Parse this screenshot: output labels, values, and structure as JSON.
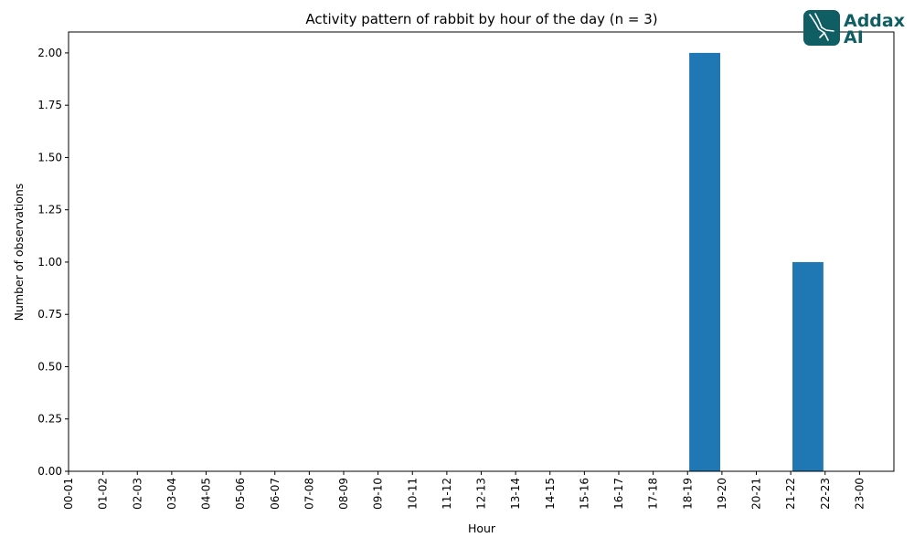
{
  "chart_data": {
    "type": "bar",
    "title": "Activity pattern of rabbit by hour of the day (n = 3)",
    "xlabel": "Hour",
    "ylabel": "Number of observations",
    "categories": [
      "00-01",
      "01-02",
      "02-03",
      "03-04",
      "04-05",
      "05-06",
      "06-07",
      "07-08",
      "08-09",
      "09-10",
      "10-11",
      "11-12",
      "12-13",
      "13-14",
      "14-15",
      "15-16",
      "16-17",
      "17-18",
      "18-19",
      "19-20",
      "20-21",
      "21-22",
      "22-23",
      "23-00"
    ],
    "values": [
      0,
      0,
      0,
      0,
      0,
      0,
      0,
      0,
      0,
      0,
      0,
      0,
      0,
      0,
      0,
      0,
      0,
      0,
      2,
      0,
      0,
      1,
      0,
      0
    ],
    "ylim": [
      0,
      2.1
    ],
    "yticks": [
      "0.00",
      "0.25",
      "0.50",
      "0.75",
      "1.00",
      "1.25",
      "1.50",
      "1.75",
      "2.00"
    ],
    "bar_color": "#1f77b4",
    "grid": false,
    "legend": "none"
  },
  "logo": {
    "line1": "Addax",
    "line2": "AI",
    "color": "#0f5e63"
  }
}
